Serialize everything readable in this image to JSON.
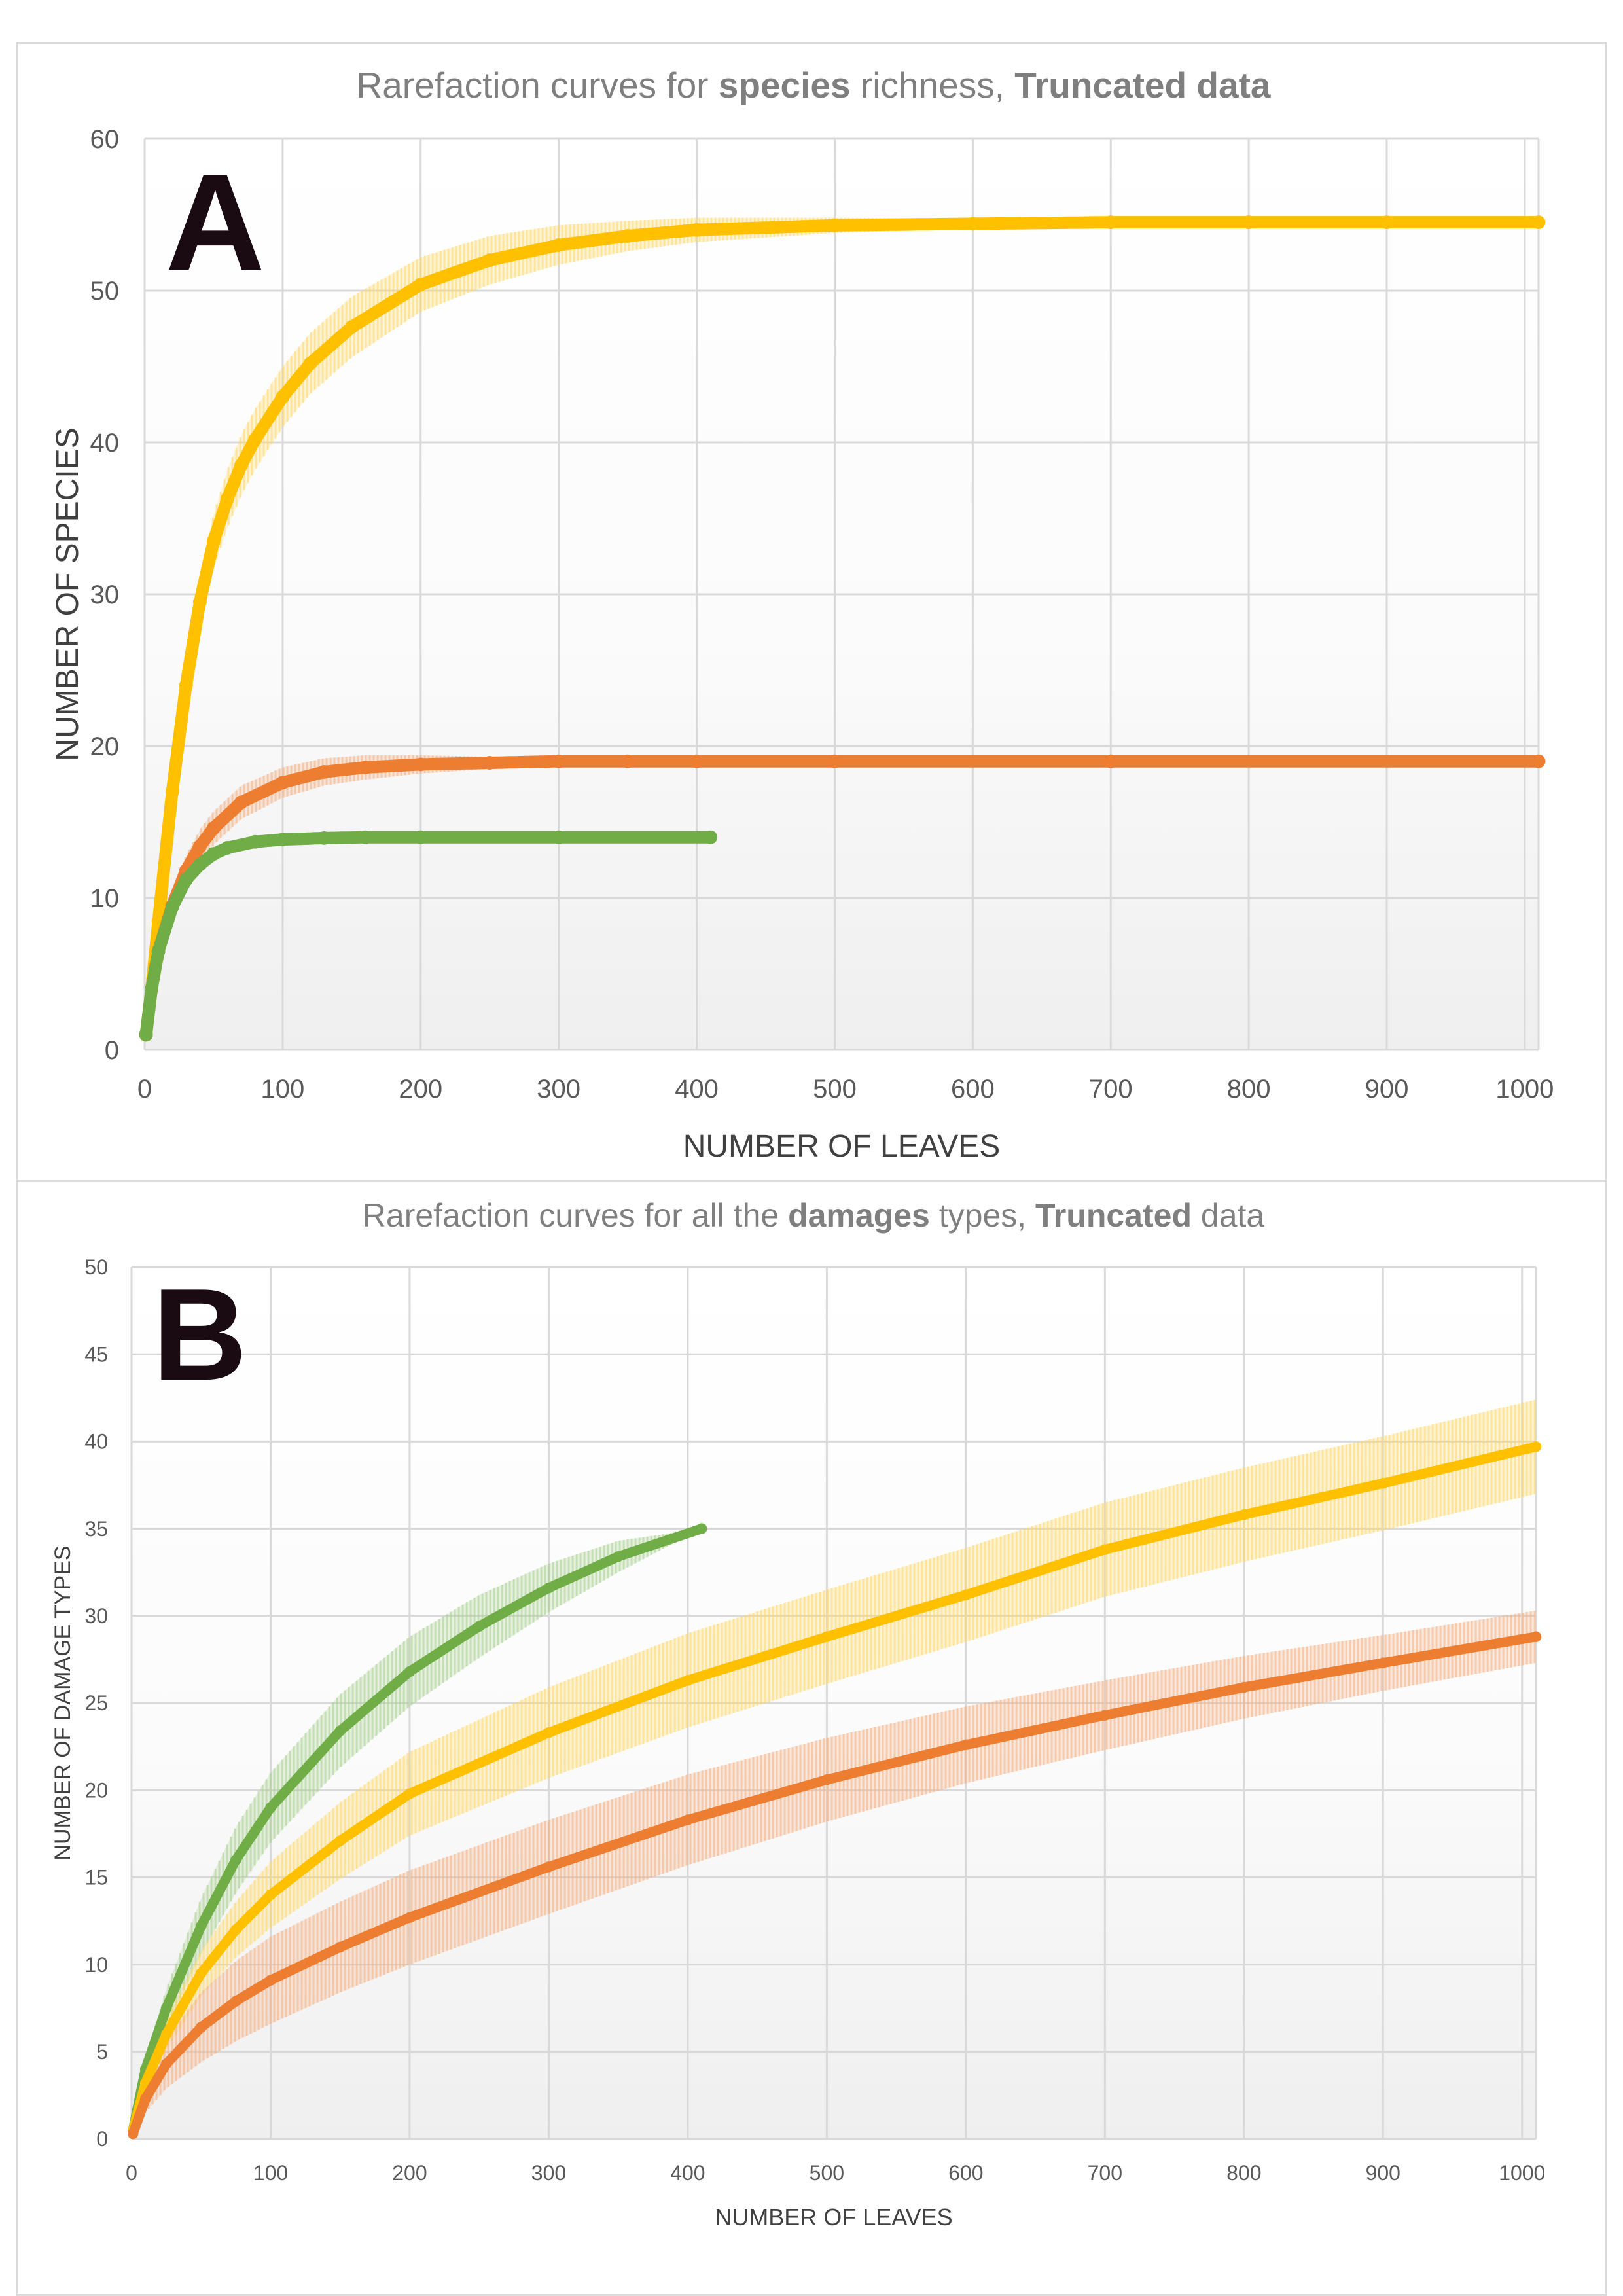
{
  "chart_data": [
    {
      "panel": "A",
      "type": "line",
      "title_parts": [
        {
          "text": "Rarefaction curves for ",
          "bold": false
        },
        {
          "text": "species",
          "bold": true
        },
        {
          "text": " richness, ",
          "bold": false
        },
        {
          "text": "Truncated data",
          "bold": true
        }
      ],
      "panel_letter": "A",
      "xlabel": "NUMBER OF LEAVES",
      "ylabel": "NUMBER OF SPECIES",
      "xlim": [
        0,
        1010
      ],
      "ylim": [
        0,
        60
      ],
      "xticks": [
        0,
        100,
        200,
        300,
        400,
        500,
        600,
        700,
        800,
        900,
        1000
      ],
      "yticks": [
        0,
        10,
        20,
        30,
        40,
        50,
        60
      ],
      "grid": true,
      "background": "gradient-light-grey-bottom",
      "series": [
        {
          "color": "#FFC000",
          "band_color": "#FFD966",
          "x": [
            1,
            5,
            10,
            20,
            30,
            40,
            50,
            60,
            70,
            80,
            100,
            120,
            150,
            200,
            250,
            300,
            350,
            400,
            500,
            600,
            700,
            800,
            900,
            1010
          ],
          "y": [
            1,
            4,
            8.5,
            17,
            24,
            29.5,
            33.5,
            36.3,
            38.5,
            40.2,
            43,
            45.2,
            47.6,
            50.4,
            52,
            53,
            53.6,
            54,
            54.3,
            54.4,
            54.5,
            54.5,
            54.5,
            54.5
          ],
          "band": [
            0,
            0,
            0.5,
            1,
            1.3,
            1.6,
            1.8,
            1.9,
            2,
            2,
            2,
            2,
            2,
            1.8,
            1.6,
            1.3,
            1.0,
            0.8,
            0.5,
            0.35,
            0.25,
            0.15,
            0.1,
            0
          ]
        },
        {
          "color": "#ED7D31",
          "band_color": "#F4B183",
          "x": [
            1,
            5,
            10,
            20,
            30,
            40,
            50,
            70,
            100,
            130,
            160,
            200,
            250,
            300,
            350,
            400,
            500,
            700,
            1010
          ],
          "y": [
            1,
            4,
            6.5,
            9.5,
            11.8,
            13.4,
            14.6,
            16.3,
            17.6,
            18.3,
            18.6,
            18.8,
            18.9,
            19,
            19,
            19,
            19,
            19,
            19
          ],
          "band": [
            0,
            0,
            0.4,
            0.8,
            1.0,
            1.1,
            1.1,
            1.1,
            1.0,
            0.9,
            0.8,
            0.6,
            0.4,
            0.25,
            0.15,
            0.1,
            0.05,
            0,
            0
          ]
        },
        {
          "color": "#70AD47",
          "band_color": "#A9D18E",
          "x": [
            1,
            5,
            10,
            20,
            30,
            40,
            50,
            60,
            80,
            100,
            130,
            160,
            200,
            300,
            410
          ],
          "y": [
            1,
            4,
            6.5,
            9.4,
            11.2,
            12.2,
            12.9,
            13.3,
            13.7,
            13.85,
            13.95,
            14,
            14,
            14,
            14
          ],
          "band": [
            0,
            0,
            0.4,
            0.6,
            0.6,
            0.55,
            0.5,
            0.4,
            0.3,
            0.2,
            0.1,
            0.05,
            0,
            0,
            0
          ]
        }
      ]
    },
    {
      "panel": "B",
      "type": "line",
      "title_parts": [
        {
          "text": "Rarefaction curves for all the ",
          "bold": false
        },
        {
          "text": "damages",
          "bold": true
        },
        {
          "text": " types, ",
          "bold": false
        },
        {
          "text": "Truncated",
          "bold": true
        },
        {
          "text": " data",
          "bold": false
        }
      ],
      "panel_letter": "B",
      "xlabel": "NUMBER OF LEAVES",
      "ylabel": "NUMBER OF DAMAGE TYPES",
      "xlim": [
        0,
        1010
      ],
      "ylim": [
        0,
        50
      ],
      "xticks": [
        0,
        100,
        200,
        300,
        400,
        500,
        600,
        700,
        800,
        900,
        1000
      ],
      "yticks": [
        0,
        5,
        10,
        15,
        20,
        25,
        30,
        35,
        40,
        45,
        50
      ],
      "grid": true,
      "background": "gradient-light-grey-bottom",
      "series": [
        {
          "color": "#70AD47",
          "band_color": "#A9D18E",
          "x": [
            1,
            10,
            25,
            50,
            75,
            100,
            150,
            200,
            250,
            300,
            350,
            410
          ],
          "y": [
            0.5,
            4,
            7.5,
            12.2,
            16,
            19,
            23.4,
            26.8,
            29.4,
            31.6,
            33.4,
            35
          ],
          "band": [
            0,
            0.6,
            1.1,
            1.6,
            1.9,
            2.0,
            2.1,
            2.0,
            1.8,
            1.4,
            0.9,
            0
          ]
        },
        {
          "color": "#FFC000",
          "band_color": "#FFD966",
          "x": [
            1,
            10,
            25,
            50,
            75,
            100,
            150,
            200,
            300,
            400,
            500,
            600,
            700,
            800,
            900,
            1010
          ],
          "y": [
            0.5,
            3.2,
            6,
            9.5,
            12,
            14,
            17.1,
            19.8,
            23.3,
            26.3,
            28.8,
            31.2,
            33.8,
            35.8,
            37.6,
            39.7
          ],
          "band": [
            0,
            0.5,
            0.9,
            1.3,
            1.6,
            1.9,
            2.2,
            2.4,
            2.6,
            2.7,
            2.7,
            2.7,
            2.7,
            2.7,
            2.7,
            2.7
          ]
        },
        {
          "color": "#ED7D31",
          "band_color": "#F4B183",
          "x": [
            1,
            10,
            25,
            50,
            75,
            100,
            150,
            200,
            300,
            400,
            500,
            600,
            700,
            800,
            900,
            1010
          ],
          "y": [
            0.3,
            2.3,
            4.3,
            6.4,
            7.9,
            9.1,
            11,
            12.7,
            15.6,
            18.3,
            20.6,
            22.6,
            24.3,
            25.9,
            27.3,
            28.8
          ],
          "band": [
            0,
            0.8,
            1.4,
            2.0,
            2.3,
            2.5,
            2.6,
            2.7,
            2.7,
            2.6,
            2.4,
            2.2,
            2.0,
            1.8,
            1.6,
            1.5
          ]
        }
      ]
    }
  ]
}
